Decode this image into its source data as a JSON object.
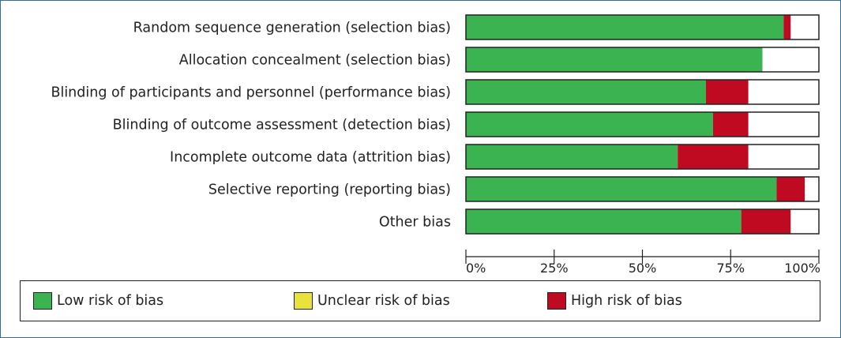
{
  "chart_data": {
    "type": "bar",
    "orientation": "horizontal",
    "stacked": true,
    "categories": [
      "Random sequence generation (selection bias)",
      "Allocation concealment (selection bias)",
      "Blinding of participants and personnel (performance bias)",
      "Blinding of outcome assessment (detection bias)",
      "Incomplete outcome data (attrition bias)",
      "Selective reporting (reporting bias)",
      "Other bias"
    ],
    "series": [
      {
        "name": "Low risk of bias",
        "color": "#3cb351",
        "values": [
          90,
          84,
          68,
          70,
          60,
          88,
          78
        ]
      },
      {
        "name": "Unclear risk of bias",
        "color": "#e8e23a",
        "values": [
          0,
          0,
          0,
          0,
          0,
          0,
          0
        ]
      },
      {
        "name": "High risk of bias",
        "color": "#c00a22",
        "values": [
          2,
          0,
          12,
          10,
          20,
          8,
          14
        ]
      }
    ],
    "xlim": [
      0,
      100
    ],
    "xticks": [
      "0%",
      "25%",
      "50%",
      "75%",
      "100%"
    ],
    "legend_position": "bottom",
    "grid": false
  }
}
